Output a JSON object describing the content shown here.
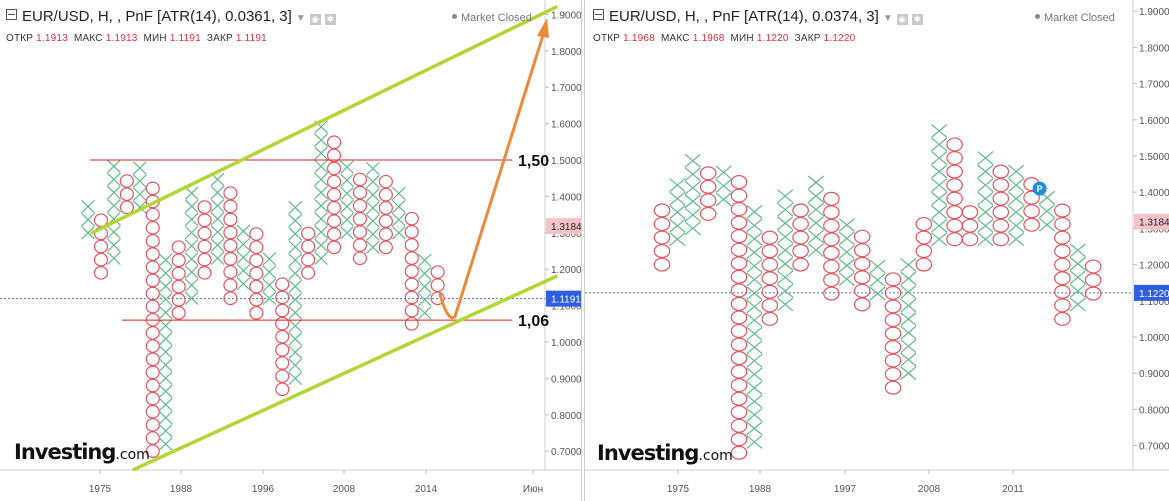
{
  "charts": [
    {
      "title": "EUR/USD, H, , PnF [ATR(14), 0.0361, 3]",
      "market_status": "Market Closed",
      "ohlc": [
        {
          "label": "ОТКР",
          "value": "1.1913"
        },
        {
          "label": "МАКС",
          "value": "1.1913"
        },
        {
          "label": "МИН",
          "value": "1.1191"
        },
        {
          "label": "ЗАКР",
          "value": "1.1191"
        }
      ],
      "logo": {
        "text": "Investing",
        "suffix": ".com"
      }
    },
    {
      "title": "EUR/USD, H, , PnF [ATR(14), 0.0374, 3]",
      "market_status": "Market Closed",
      "ohlc": [
        {
          "label": "ОТКР",
          "value": "1.1968"
        },
        {
          "label": "МАКС",
          "value": "1.1968"
        },
        {
          "label": "МИН",
          "value": "1.1220"
        },
        {
          "label": "ЗАКР",
          "value": "1.1220"
        }
      ],
      "logo": {
        "text": "Investing",
        "suffix": ".com"
      }
    }
  ],
  "chart_data": [
    {
      "type": "point-and-figure",
      "box_size": 0.0361,
      "ylim": [
        0.65,
        1.92
      ],
      "yticks": [
        0.7,
        0.8,
        0.9,
        1.0,
        1.1,
        1.2,
        1.3,
        1.4,
        1.5,
        1.6,
        1.7,
        1.8,
        1.9
      ],
      "xticks": [
        "1975",
        "1988",
        "1996",
        "2008",
        "2014",
        "Июн"
      ],
      "last_price": "1.1191",
      "price_marker": "1.3184",
      "columns": [
        {
          "t": "X",
          "lo": 1.3,
          "hi": 1.37
        },
        {
          "t": "O",
          "lo": 1.19,
          "hi": 1.33
        },
        {
          "t": "X",
          "lo": 1.23,
          "hi": 1.48
        },
        {
          "t": "O",
          "lo": 1.37,
          "hi": 1.44
        },
        {
          "t": "X",
          "lo": 1.37,
          "hi": 1.48
        },
        {
          "t": "O",
          "lo": 0.7,
          "hi": 1.44
        },
        {
          "t": "X",
          "lo": 0.72,
          "hi": 1.23
        },
        {
          "t": "O",
          "lo": 1.08,
          "hi": 1.26
        },
        {
          "t": "X",
          "lo": 1.12,
          "hi": 1.41
        },
        {
          "t": "O",
          "lo": 1.19,
          "hi": 1.37
        },
        {
          "t": "X",
          "lo": 1.23,
          "hi": 1.44
        },
        {
          "t": "O",
          "lo": 1.12,
          "hi": 1.41
        },
        {
          "t": "X",
          "lo": 1.16,
          "hi": 1.3
        },
        {
          "t": "O",
          "lo": 1.08,
          "hi": 1.3
        },
        {
          "t": "X",
          "lo": 1.12,
          "hi": 1.23
        },
        {
          "t": "O",
          "lo": 0.87,
          "hi": 1.16
        },
        {
          "t": "X",
          "lo": 0.9,
          "hi": 1.37
        },
        {
          "t": "O",
          "lo": 1.19,
          "hi": 1.3
        },
        {
          "t": "X",
          "lo": 1.23,
          "hi": 1.59
        },
        {
          "t": "O",
          "lo": 1.26,
          "hi": 1.55
        },
        {
          "t": "X",
          "lo": 1.3,
          "hi": 1.48
        },
        {
          "t": "O",
          "lo": 1.23,
          "hi": 1.44
        },
        {
          "t": "X",
          "lo": 1.26,
          "hi": 1.48
        },
        {
          "t": "O",
          "lo": 1.26,
          "hi": 1.44
        },
        {
          "t": "X",
          "lo": 1.3,
          "hi": 1.41
        },
        {
          "t": "O",
          "lo": 1.05,
          "hi": 1.33
        },
        {
          "t": "X",
          "lo": 1.08,
          "hi": 1.23
        },
        {
          "t": "O",
          "lo": 1.12,
          "hi": 1.19
        }
      ],
      "annotations": [
        {
          "type": "hline",
          "value": 1.5,
          "label": "1,50"
        },
        {
          "type": "hline",
          "value": 1.06,
          "label": "1,06"
        },
        {
          "type": "channel-upper",
          "from": [
            0.3,
            1.3
          ],
          "to": [
            1.0,
            1.92
          ]
        },
        {
          "type": "channel-lower",
          "from": [
            0.25,
            0.65
          ],
          "to": [
            1.0,
            1.18
          ]
        },
        {
          "type": "arrow",
          "from": [
            0.82,
            1.07
          ],
          "to": [
            0.99,
            1.89
          ]
        }
      ]
    },
    {
      "type": "point-and-figure",
      "box_size": 0.0374,
      "ylim": [
        0.64,
        1.94
      ],
      "yticks": [
        0.7,
        0.8,
        0.9,
        1.0,
        1.1,
        1.2,
        1.3,
        1.4,
        1.5,
        1.6,
        1.7,
        1.8,
        1.9
      ],
      "xticks": [
        "1975",
        "1988",
        "1997",
        "2008",
        "2011"
      ],
      "last_price": "1.1220",
      "price_marker": "1.3184",
      "columns": [
        {
          "t": "O",
          "lo": 1.2,
          "hi": 1.34
        },
        {
          "t": "X",
          "lo": 1.27,
          "hi": 1.42
        },
        {
          "t": "X",
          "lo": 1.3,
          "hi": 1.49
        },
        {
          "t": "O",
          "lo": 1.34,
          "hi": 1.46
        },
        {
          "t": "X",
          "lo": 1.38,
          "hi": 1.46
        },
        {
          "t": "O",
          "lo": 0.68,
          "hi": 1.42
        },
        {
          "t": "X",
          "lo": 0.71,
          "hi": 1.34
        },
        {
          "t": "O",
          "lo": 1.05,
          "hi": 1.27
        },
        {
          "t": "X",
          "lo": 1.09,
          "hi": 1.38
        },
        {
          "t": "O",
          "lo": 1.2,
          "hi": 1.34
        },
        {
          "t": "X",
          "lo": 1.24,
          "hi": 1.42
        },
        {
          "t": "O",
          "lo": 1.12,
          "hi": 1.38
        },
        {
          "t": "X",
          "lo": 1.16,
          "hi": 1.3
        },
        {
          "t": "O",
          "lo": 1.09,
          "hi": 1.27
        },
        {
          "t": "X",
          "lo": 1.12,
          "hi": 1.2
        },
        {
          "t": "O",
          "lo": 0.86,
          "hi": 1.16
        },
        {
          "t": "X",
          "lo": 0.9,
          "hi": 1.2
        },
        {
          "t": "O",
          "lo": 1.2,
          "hi": 1.31
        },
        {
          "t": "X",
          "lo": 1.27,
          "hi": 1.57
        },
        {
          "t": "O",
          "lo": 1.27,
          "hi": 1.53
        },
        {
          "t": "O",
          "lo": 1.27,
          "hi": 1.34
        },
        {
          "t": "X",
          "lo": 1.27,
          "hi": 1.49
        },
        {
          "t": "O",
          "lo": 1.27,
          "hi": 1.46
        },
        {
          "t": "X",
          "lo": 1.27,
          "hi": 1.46
        },
        {
          "t": "O",
          "lo": 1.31,
          "hi": 1.42
        },
        {
          "t": "X",
          "lo": 1.31,
          "hi": 1.38
        },
        {
          "t": "O",
          "lo": 1.05,
          "hi": 1.34
        },
        {
          "t": "X",
          "lo": 1.09,
          "hi": 1.23
        },
        {
          "t": "O",
          "lo": 1.12,
          "hi": 1.2
        }
      ],
      "annotations": [
        {
          "type": "marker",
          "col": 24,
          "value": 1.41,
          "label": "P"
        }
      ]
    }
  ]
}
